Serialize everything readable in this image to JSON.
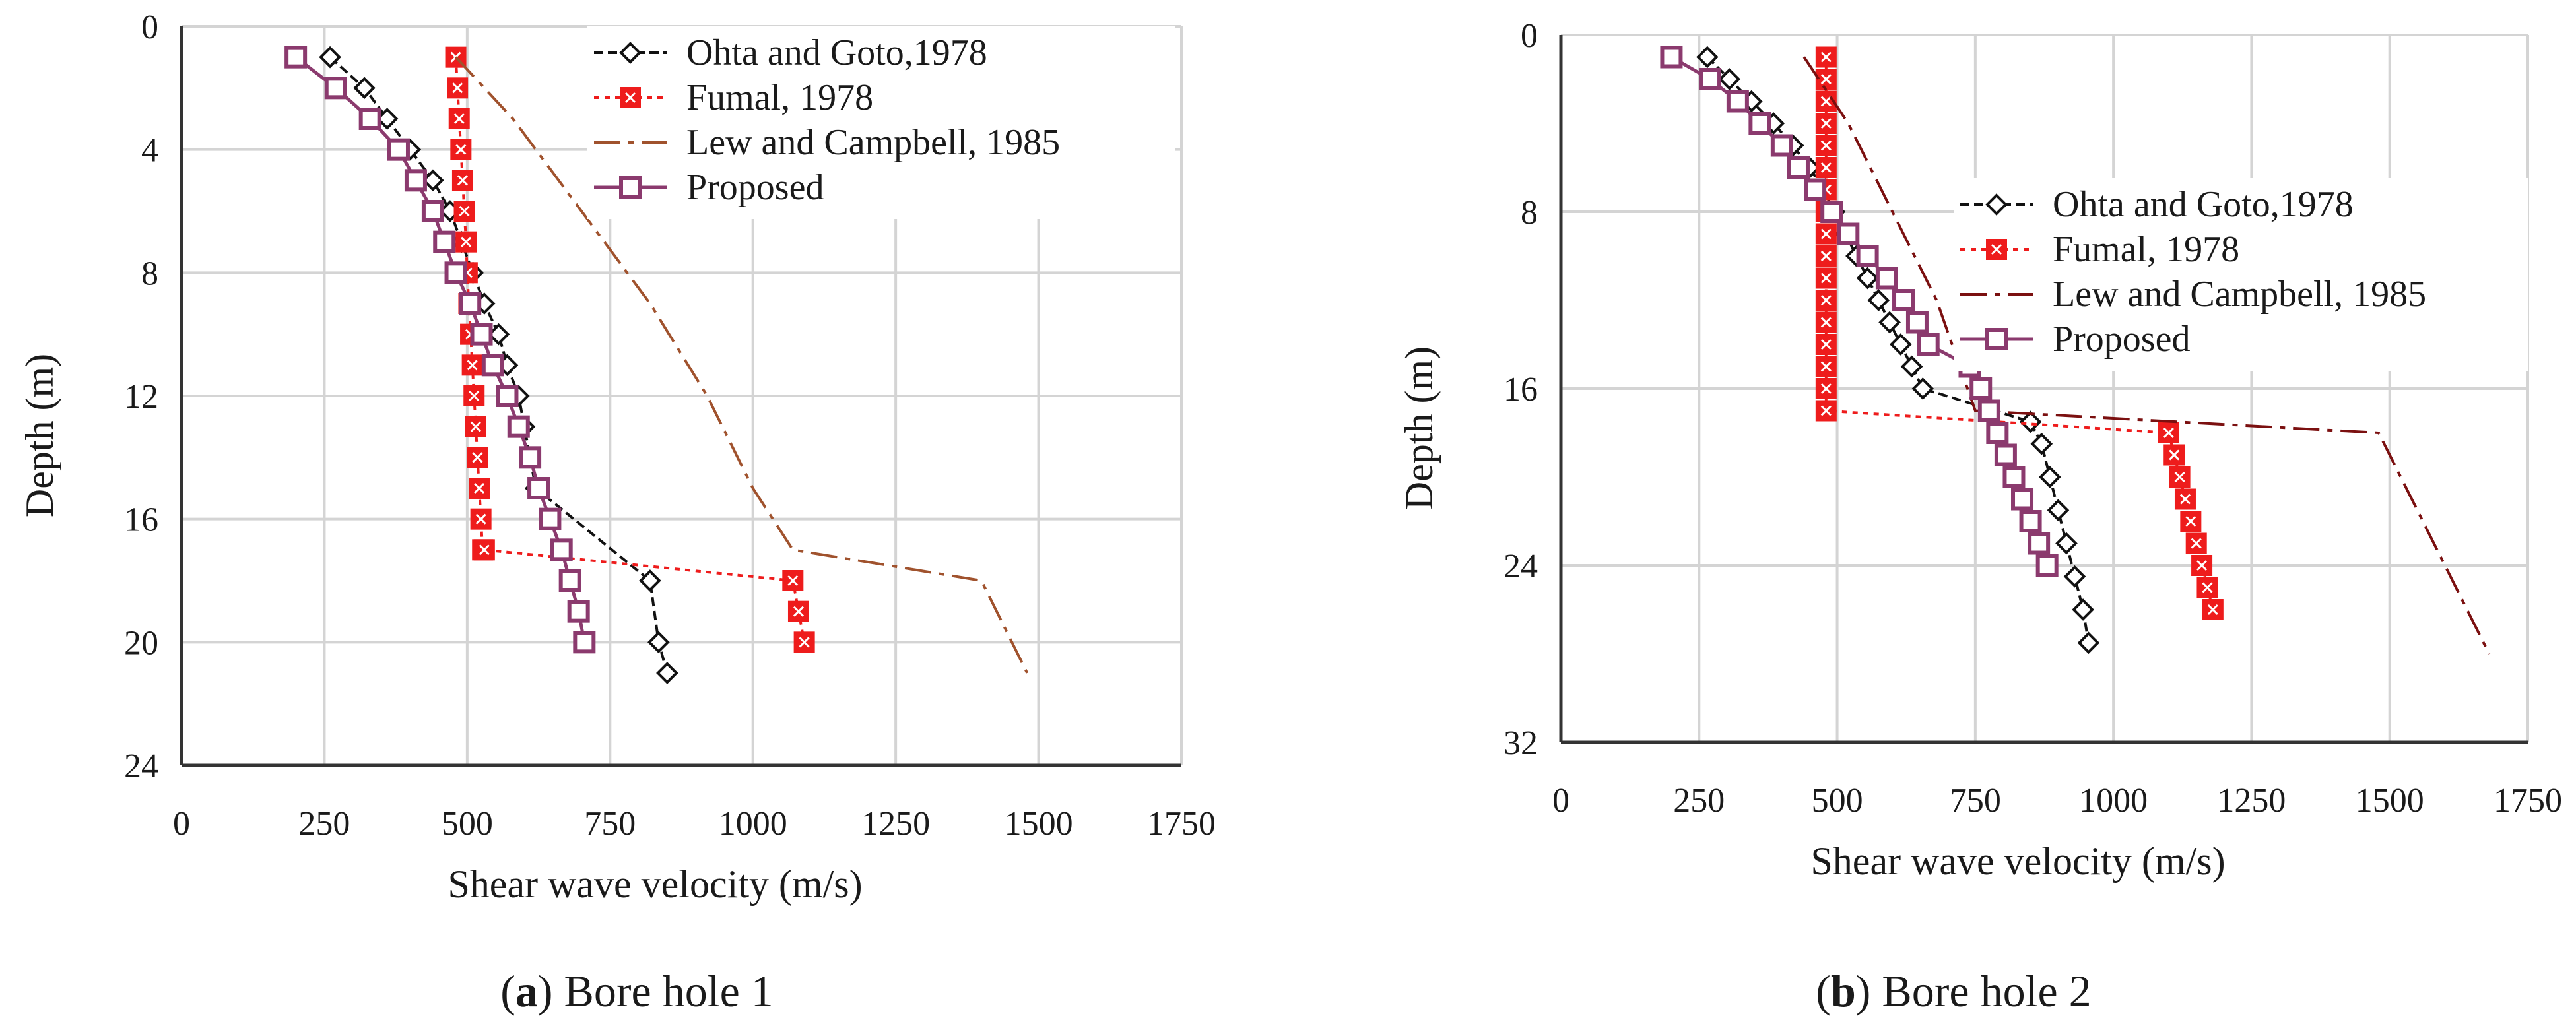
{
  "figure": {
    "captions": [
      {
        "prefix": "(",
        "letter": "a",
        "text": ") Bore hole 1"
      },
      {
        "prefix": "(",
        "letter": "b",
        "text": ") Bore hole 2"
      }
    ]
  },
  "styles": {
    "ohta": {
      "color": "#111111",
      "marker": "diamond"
    },
    "fumal": {
      "color": "#ee1c1c",
      "marker": "square-x"
    },
    "lew": {
      "color": "#a0522d",
      "marker": "none"
    },
    "proposed": {
      "color": "#8b3a6e",
      "marker": "square"
    }
  },
  "chart_data": [
    {
      "type": "line",
      "title": "Bore hole 1",
      "xlabel": "Shear wave velocity (m/s)",
      "ylabel": "Depth (m)",
      "xlim": [
        0,
        1750
      ],
      "ylim": [
        0,
        24
      ],
      "y_inverted": true,
      "xticks": [
        0,
        250,
        500,
        750,
        1000,
        1250,
        1500,
        1750
      ],
      "yticks": [
        0,
        4,
        8,
        12,
        16,
        20,
        24
      ],
      "grid": true,
      "legend_position": "top-right",
      "lew_color": "#a0522d",
      "series": [
        {
          "key": "ohta",
          "name": "Ohta and Goto,1978",
          "x": [
            260,
            320,
            360,
            400,
            440,
            470,
            490,
            510,
            530,
            555,
            570,
            590,
            600,
            620,
            820,
            835,
            850
          ],
          "y": [
            1,
            2,
            3,
            4,
            5,
            6,
            7,
            8,
            9,
            10,
            11,
            12,
            13,
            15,
            18,
            20,
            21
          ]
        },
        {
          "key": "fumal",
          "name": "Fumal, 1978",
          "x": [
            480,
            483,
            486,
            489,
            492,
            495,
            498,
            500,
            503,
            506,
            509,
            512,
            515,
            518,
            521,
            524,
            527,
            530,
            1070,
            1080,
            1090
          ],
          "y": [
            1,
            2,
            3,
            4,
            5,
            6,
            7,
            8,
            9,
            10,
            11,
            12,
            13,
            14,
            15,
            16,
            17,
            17,
            18,
            19,
            20
          ]
        },
        {
          "key": "lew",
          "name": "Lew and Campbell, 1985",
          "x": [
            480,
            580,
            700,
            820,
            920,
            1000,
            1070,
            1400,
            1480
          ],
          "y": [
            1,
            3,
            6,
            9,
            12,
            15,
            17,
            18,
            21
          ]
        },
        {
          "key": "proposed",
          "name": "Proposed",
          "x": [
            200,
            270,
            330,
            380,
            410,
            440,
            460,
            480,
            505,
            525,
            545,
            570,
            590,
            610,
            625,
            645,
            665,
            680,
            695,
            705
          ],
          "y": [
            1,
            2,
            3,
            4,
            5,
            6,
            7,
            8,
            9,
            10,
            11,
            12,
            13,
            14,
            15,
            16,
            17,
            18,
            19,
            20
          ]
        }
      ]
    },
    {
      "type": "line",
      "title": "Bore hole 2",
      "xlabel": "Shear wave velocity (m/s)",
      "ylabel": "Depth (m)",
      "xlim": [
        0,
        1750
      ],
      "ylim": [
        0,
        32
      ],
      "y_inverted": true,
      "xticks": [
        0,
        250,
        500,
        750,
        1000,
        1250,
        1500,
        1750
      ],
      "yticks": [
        0,
        8,
        16,
        24,
        32
      ],
      "grid": true,
      "legend_position": "top-right",
      "lew_color": "#7b1010",
      "series": [
        {
          "key": "ohta",
          "name": "Ohta and Goto,1978",
          "x": [
            265,
            305,
            345,
            385,
            420,
            450,
            475,
            495,
            515,
            535,
            555,
            575,
            595,
            615,
            635,
            655,
            850,
            870,
            885,
            900,
            915,
            930,
            945,
            955
          ],
          "y": [
            1,
            2,
            3,
            4,
            5,
            6,
            7,
            8,
            9,
            10,
            11,
            12,
            13,
            14,
            15,
            16,
            17.5,
            18.5,
            20,
            21.5,
            23,
            24.5,
            26,
            27.5
          ]
        },
        {
          "key": "fumal",
          "name": "Fumal, 1978",
          "x": [
            480,
            480,
            480,
            480,
            480,
            480,
            480,
            480,
            480,
            480,
            480,
            480,
            480,
            480,
            480,
            480,
            480,
            1100,
            1110,
            1120,
            1130,
            1140,
            1150,
            1160,
            1170,
            1180
          ],
          "y": [
            1,
            2,
            3,
            4,
            5,
            6,
            7,
            8,
            9,
            10,
            11,
            12,
            13,
            14,
            15,
            16,
            17,
            18,
            19,
            20,
            21,
            22,
            23,
            24,
            25,
            26
          ]
        },
        {
          "key": "lew",
          "name": "Lew and Campbell, 1985",
          "x": [
            440,
            520,
            600,
            680,
            750,
            1480,
            1680
          ],
          "y": [
            1,
            4,
            8,
            12,
            17,
            18,
            28
          ]
        },
        {
          "key": "proposed",
          "name": "Proposed",
          "x": [
            200,
            270,
            320,
            360,
            400,
            430,
            460,
            490,
            520,
            555,
            590,
            620,
            645,
            665,
            740,
            760,
            775,
            790,
            805,
            820,
            835,
            850,
            865,
            880
          ],
          "y": [
            1,
            2,
            3,
            4,
            5,
            6,
            7,
            8,
            9,
            10,
            11,
            12,
            13,
            14,
            15,
            16,
            17,
            18,
            19,
            20,
            21,
            22,
            23,
            24
          ]
        }
      ]
    }
  ]
}
